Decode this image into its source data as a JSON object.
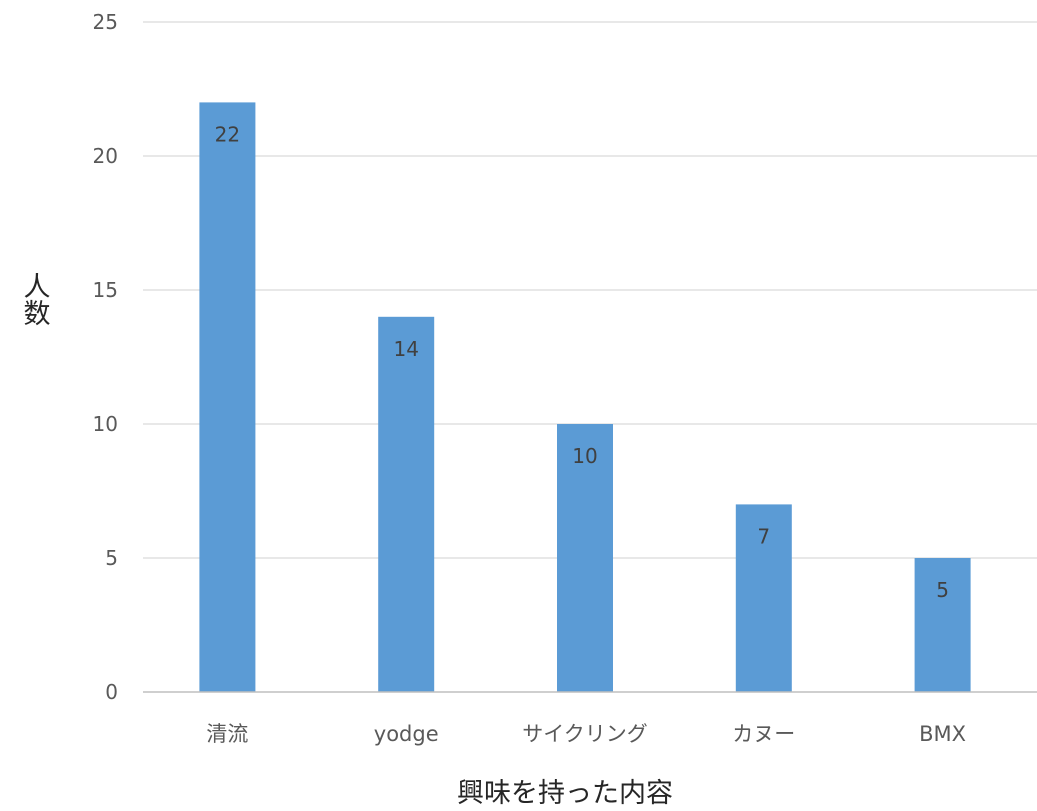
{
  "chart_data": {
    "type": "bar",
    "categories": [
      "清流",
      "yodge",
      "サイクリング",
      "カヌー",
      "BMX"
    ],
    "values": [
      22,
      14,
      10,
      7,
      5
    ],
    "title": "",
    "xlabel": "興味を持った内容",
    "ylabel": "人数",
    "ylim": [
      0,
      25
    ],
    "yticks": [
      0,
      5,
      10,
      15,
      20,
      25
    ],
    "grid": true,
    "legend": "none",
    "data_labels": true,
    "colors": {
      "bar": "#5B9BD5",
      "grid": "#D9D9D9",
      "axis": "#BFBFBF"
    }
  }
}
